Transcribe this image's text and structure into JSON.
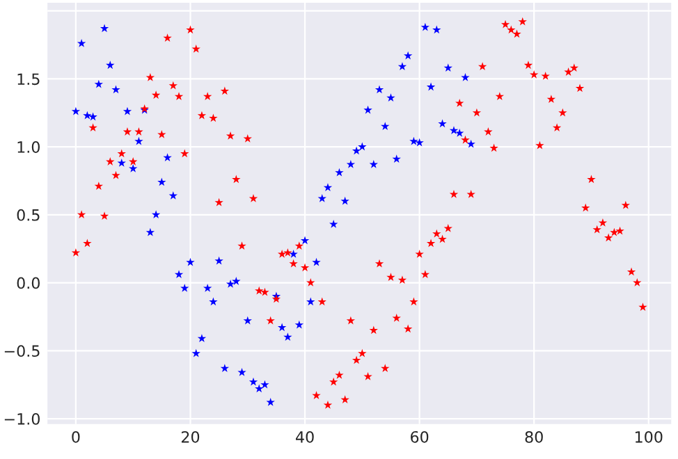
{
  "chart_data": {
    "type": "scatter",
    "marker": "star",
    "grid": true,
    "xlim": [
      -4.95,
      103.95
    ],
    "ylim": [
      -1.04,
      2.06
    ],
    "xticks": [
      0,
      20,
      40,
      60,
      80,
      100
    ],
    "yticks": [
      {
        "value": -1.0,
        "label": "−1.0"
      },
      {
        "value": -0.5,
        "label": "−0.5"
      },
      {
        "value": 0.0,
        "label": "0.0"
      },
      {
        "value": 0.5,
        "label": "0.5"
      },
      {
        "value": 1.0,
        "label": "1.0"
      },
      {
        "value": 1.5,
        "label": "1.5"
      },
      {
        "value": 2.0,
        "label": null
      }
    ],
    "series": [
      {
        "color": "#0000ff",
        "x": [
          0,
          1,
          2,
          3,
          4,
          5,
          6,
          7,
          8,
          9,
          10,
          11,
          12,
          13,
          14,
          15,
          16,
          17,
          18,
          19,
          20,
          21,
          22,
          23,
          24,
          25,
          26,
          27,
          28,
          29,
          30,
          31,
          32,
          33,
          34,
          35,
          36,
          37,
          38,
          39,
          40,
          41,
          42,
          43,
          44,
          45,
          46,
          47,
          48,
          49,
          50,
          51,
          52,
          53,
          54,
          55,
          56,
          57,
          58,
          59,
          60,
          61,
          62,
          63,
          64,
          65,
          66,
          67,
          68,
          69
        ],
        "values": [
          1.26,
          1.76,
          1.23,
          1.22,
          1.46,
          1.87,
          1.6,
          1.42,
          0.88,
          1.26,
          0.84,
          1.04,
          1.27,
          0.37,
          0.5,
          0.74,
          0.92,
          0.64,
          0.06,
          -0.04,
          0.15,
          -0.52,
          -0.41,
          -0.04,
          -0.14,
          0.16,
          -0.63,
          -0.01,
          0.01,
          -0.66,
          -0.28,
          -0.73,
          -0.78,
          -0.75,
          -0.88,
          -0.1,
          -0.33,
          -0.4,
          0.21,
          -0.31,
          0.31,
          -0.14,
          0.15,
          0.62,
          0.7,
          0.43,
          0.81,
          0.6,
          0.87,
          0.97,
          1.0,
          1.27,
          0.87,
          1.42,
          1.15,
          1.36,
          0.91,
          1.59,
          1.67,
          1.04,
          1.03,
          1.88,
          1.44,
          1.86,
          1.17,
          1.58,
          1.12,
          1.1,
          1.51,
          1.02
        ]
      },
      {
        "color": "#ff0000",
        "x": [
          0,
          1,
          2,
          3,
          4,
          5,
          6,
          7,
          8,
          9,
          10,
          11,
          12,
          13,
          14,
          15,
          16,
          17,
          18,
          19,
          20,
          21,
          22,
          23,
          24,
          25,
          26,
          27,
          28,
          29,
          30,
          31,
          32,
          33,
          34,
          35,
          36,
          37,
          38,
          39,
          40,
          41,
          42,
          43,
          44,
          45,
          46,
          47,
          48,
          49,
          50,
          51,
          52,
          53,
          54,
          55,
          56,
          57,
          58,
          59,
          60,
          61,
          62,
          63,
          64,
          65,
          66,
          67,
          68,
          69,
          70,
          71,
          72,
          73,
          74,
          75,
          76,
          77,
          78,
          79,
          80,
          81,
          82,
          83,
          84,
          85,
          86,
          87,
          88,
          89,
          90,
          91,
          92,
          93,
          94,
          95,
          96,
          97,
          98,
          99
        ],
        "values": [
          0.22,
          0.5,
          0.29,
          1.14,
          0.71,
          0.49,
          0.89,
          0.79,
          0.95,
          1.11,
          0.89,
          1.11,
          1.28,
          1.51,
          1.38,
          1.09,
          1.8,
          1.45,
          1.37,
          0.95,
          1.86,
          1.72,
          1.23,
          1.37,
          1.21,
          0.59,
          1.41,
          1.08,
          0.76,
          0.27,
          1.06,
          0.62,
          -0.06,
          -0.07,
          -0.28,
          -0.12,
          0.21,
          0.22,
          0.14,
          0.27,
          0.11,
          0.0,
          -0.83,
          -0.14,
          -0.9,
          -0.73,
          -0.68,
          -0.86,
          -0.28,
          -0.57,
          -0.52,
          -0.69,
          -0.35,
          0.14,
          -0.63,
          0.04,
          -0.26,
          0.02,
          -0.34,
          -0.14,
          0.21,
          0.06,
          0.29,
          0.36,
          0.32,
          0.4,
          0.65,
          1.32,
          1.05,
          0.65,
          1.25,
          1.59,
          1.11,
          0.99,
          1.37,
          1.9,
          1.86,
          1.83,
          1.92,
          1.6,
          1.53,
          1.01,
          1.52,
          1.35,
          1.14,
          1.25,
          1.55,
          1.58,
          1.43,
          0.55,
          0.76,
          0.39,
          0.44,
          0.33,
          0.37,
          0.38,
          0.57,
          0.08,
          0.0,
          -0.18
        ]
      }
    ]
  }
}
